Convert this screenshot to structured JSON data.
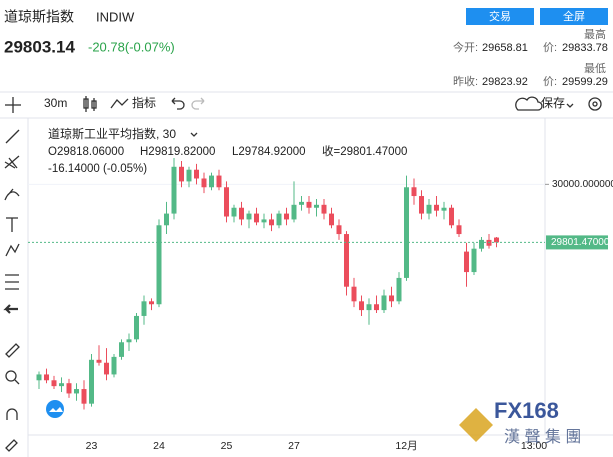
{
  "header": {
    "symbol_name": "道琼斯指数",
    "symbol_code": "INDIW",
    "buttons": [
      "交易",
      "全屏"
    ],
    "price": "29803.14",
    "change": "-20.78(-0.07%)",
    "stats": {
      "high_label": "最高",
      "open_label": "今开:",
      "open": "29658.81",
      "high_price_label": "价:",
      "high": "29833.78",
      "low_label": "最低",
      "prev_close_label": "昨收:",
      "prev_close": "29823.92",
      "low_price_label": "价:",
      "low": "29599.29"
    }
  },
  "toolbar": {
    "interval": "30m",
    "indicators": "指标",
    "save": "保存"
  },
  "chart_data": {
    "type": "candlestick",
    "title": "道琼斯工业平均指数, 30",
    "legend": [
      "O29818.06000",
      "H29819.82000",
      "L29784.92000",
      "收=29801.47000"
    ],
    "legend_change": "-16.14000 (-0.05%)",
    "categories": [
      null,
      null,
      null,
      null,
      null,
      null,
      null,
      "23",
      null,
      null,
      null,
      null,
      null,
      null,
      null,
      null,
      "24",
      null,
      null,
      null,
      null,
      null,
      null,
      null,
      null,
      "25",
      null,
      null,
      null,
      null,
      null,
      null,
      null,
      null,
      "27",
      null,
      null,
      null,
      null,
      null,
      null,
      null,
      null,
      null,
      null,
      null,
      null,
      null,
      null,
      "12月",
      null,
      null,
      null,
      null,
      null,
      null,
      null,
      null,
      null,
      null,
      null,
      null,
      null,
      null,
      null,
      null,
      "13:00"
    ],
    "open": [
      29330,
      29350,
      29330,
      29310,
      29320,
      29285,
      29300,
      29250,
      29400,
      29390,
      29350,
      29410,
      29460,
      29470,
      29550,
      29600,
      29590,
      29860,
      29900,
      30060,
      30010,
      30050,
      30020,
      29990,
      30030,
      29990,
      29890,
      29920,
      29880,
      29900,
      29870,
      29880,
      29860,
      29900,
      29880,
      29930,
      29940,
      29920,
      29930,
      29900,
      29860,
      29830,
      29650,
      29600,
      29570,
      29590,
      29570,
      29620,
      29600,
      29680,
      29990,
      29960,
      29900,
      29930,
      29910,
      29920,
      29860,
      29770,
      29700,
      29780,
      29810,
      29818.06,
      null,
      null,
      null,
      null,
      null
    ],
    "high": [
      29360,
      29370,
      29345,
      29340,
      29335,
      29320,
      29330,
      29420,
      29450,
      29440,
      29420,
      29470,
      29490,
      29560,
      29620,
      29610,
      29880,
      29940,
      30090,
      30080,
      30060,
      30070,
      30040,
      30040,
      30050,
      30010,
      29930,
      29940,
      29910,
      29920,
      29900,
      29900,
      29910,
      29920,
      30010,
      29960,
      29960,
      29950,
      29950,
      29920,
      29880,
      29840,
      29680,
      29620,
      29610,
      29620,
      29640,
      29650,
      29700,
      30030,
      30020,
      29980,
      29950,
      29960,
      29940,
      29930,
      29880,
      29800,
      29800,
      29820,
      29830,
      29819.82,
      null,
      null,
      null,
      null,
      null
    ],
    "low": [
      29300,
      29320,
      29300,
      29290,
      29270,
      29260,
      29230,
      29240,
      29380,
      29330,
      29340,
      29400,
      29430,
      29460,
      29520,
      29570,
      29580,
      29830,
      29880,
      29990,
      29990,
      30000,
      29970,
      29980,
      29980,
      29870,
      29870,
      29860,
      29850,
      29860,
      29850,
      29840,
      29850,
      29860,
      29870,
      29910,
      29900,
      29890,
      29880,
      29850,
      29810,
      29620,
      29580,
      29550,
      29520,
      29560,
      29560,
      29580,
      29590,
      29670,
      29930,
      29880,
      29880,
      29890,
      29880,
      29850,
      29820,
      29650,
      29690,
      29770,
      29780,
      29784.92,
      null,
      null,
      null,
      null,
      null
    ],
    "close": [
      29350,
      29330,
      29310,
      29320,
      29285,
      29300,
      29250,
      29400,
      29390,
      29350,
      29410,
      29460,
      29470,
      29550,
      29600,
      29590,
      29860,
      29900,
      30060,
      30010,
      30050,
      30020,
      29990,
      30030,
      29990,
      29890,
      29920,
      29880,
      29900,
      29870,
      29880,
      29860,
      29900,
      29880,
      29930,
      29940,
      29920,
      29930,
      29900,
      29860,
      29830,
      29650,
      29600,
      29570,
      29590,
      29570,
      29620,
      29600,
      29680,
      29990,
      29960,
      29900,
      29930,
      29910,
      29920,
      29860,
      29830,
      29700,
      29780,
      29810,
      29790,
      29801.47,
      null,
      null,
      null,
      null,
      null
    ],
    "up_color": "#53b987",
    "down_color": "#eb4d5c",
    "ylim": [
      29160,
      30220
    ],
    "yticks": [
      {
        "value": 30000,
        "label": "30000.000000"
      }
    ],
    "last_price": {
      "value": 29801.47,
      "label": "29801.47000"
    },
    "grid": true
  },
  "watermark": {
    "logo": "FX168",
    "company": "漢 聲 集 團"
  }
}
